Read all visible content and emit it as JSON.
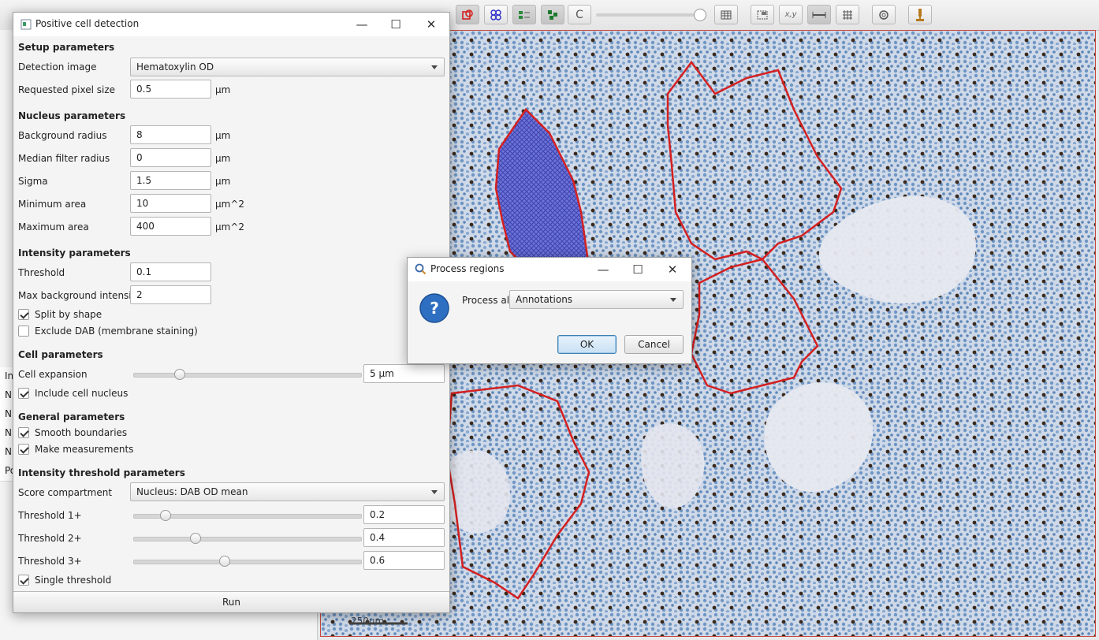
{
  "app": {
    "toolbar_icons": [
      "move-tool-icon",
      "rectangle-tool-icon",
      "ellipse-tool-icon",
      "line-tool-icon",
      "polygon-tool-icon",
      "polyline-tool-icon",
      "brush-tool-icon",
      "wand-tool-icon",
      "points-tool-icon",
      "show-annotations-icon",
      "fill-annotations-icon",
      "show-names-icon",
      "show-detections-icon",
      "fill-detections-icon",
      "channel-c-icon",
      "show-grid-icon",
      "show-overview-icon",
      "show-coords-icon",
      "show-scalebar-icon",
      "counting-grid-icon",
      "settings-icon",
      "microscope-icon"
    ],
    "accent_color": "#d42020",
    "left_panel_rows": [
      "In",
      "N",
      "N",
      "N",
      "N",
      "Po"
    ]
  },
  "viewer": {
    "scalebar_label": "250µm"
  },
  "pcd": {
    "title": "Positive cell detection",
    "setup": {
      "heading": "Setup parameters",
      "detection_image_label": "Detection image",
      "detection_image_value": "Hematoxylin OD",
      "pixel_size_label": "Requested pixel size",
      "pixel_size_value": "0.5",
      "pixel_size_unit": "µm"
    },
    "nucleus": {
      "heading": "Nucleus parameters",
      "rows": [
        {
          "label": "Background radius",
          "value": "8",
          "unit": "µm"
        },
        {
          "label": "Median filter radius",
          "value": "0",
          "unit": "µm"
        },
        {
          "label": "Sigma",
          "value": "1.5",
          "unit": "µm"
        },
        {
          "label": "Minimum area",
          "value": "10",
          "unit": "µm^2"
        },
        {
          "label": "Maximum area",
          "value": "400",
          "unit": "µm^2"
        }
      ]
    },
    "intensity": {
      "heading": "Intensity parameters",
      "threshold_label": "Threshold",
      "threshold_value": "0.1",
      "max_bg_label": "Max background intensity",
      "max_bg_value": "2",
      "split_by_shape": "Split by shape",
      "split_by_shape_checked": true,
      "exclude_dab": "Exclude DAB (membrane staining)",
      "exclude_dab_checked": false
    },
    "cell": {
      "heading": "Cell parameters",
      "expansion_label": "Cell expansion",
      "expansion_value": "5 µm",
      "expansion_fraction": 0.2,
      "include_nucleus": "Include cell nucleus",
      "include_nucleus_checked": true
    },
    "general": {
      "heading": "General parameters",
      "smooth": "Smooth boundaries",
      "smooth_checked": true,
      "measurements": "Make measurements",
      "measurements_checked": true
    },
    "threshold": {
      "heading": "Intensity threshold parameters",
      "score_label": "Score compartment",
      "score_value": "Nucleus: DAB OD mean",
      "t1_label": "Threshold 1+",
      "t1_value": "0.2",
      "t1_fraction": 0.14,
      "t2_label": "Threshold 2+",
      "t2_value": "0.4",
      "t2_fraction": 0.27,
      "t3_label": "Threshold 3+",
      "t3_value": "0.6",
      "t3_fraction": 0.4,
      "single": "Single threshold",
      "single_checked": true
    },
    "run_label": "Run"
  },
  "process_dialog": {
    "title": "Process regions",
    "prompt_label": "Process all",
    "selected": "Annotations",
    "ok_label": "OK",
    "cancel_label": "Cancel"
  }
}
